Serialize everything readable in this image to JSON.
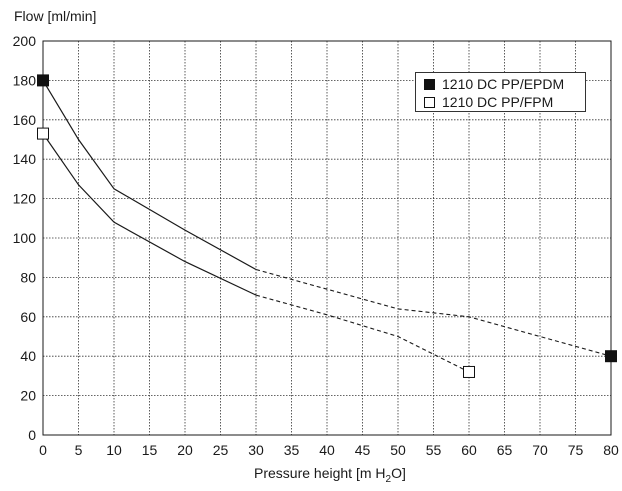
{
  "chart_data": {
    "type": "line",
    "xlabel_prefix": "Pressure height [m H",
    "xlabel_sub": "2",
    "xlabel_suffix": "O]",
    "ylabel": "Flow [ml/min]",
    "xlim": [
      0,
      80
    ],
    "ylim": [
      0,
      200
    ],
    "xticks": [
      0,
      5,
      10,
      15,
      20,
      25,
      30,
      35,
      40,
      45,
      50,
      55,
      60,
      65,
      70,
      75,
      80
    ],
    "yticks": [
      0,
      20,
      40,
      60,
      80,
      100,
      120,
      140,
      160,
      180,
      200
    ],
    "grid": true,
    "legend_position": "top-right",
    "series": [
      {
        "name": "1210 DC PP/EPDM",
        "marker": "filled-square",
        "solid": [
          [
            0,
            180
          ],
          [
            5,
            150
          ],
          [
            10,
            125
          ],
          [
            20,
            104
          ],
          [
            30,
            84
          ]
        ],
        "dashed": [
          [
            30,
            84
          ],
          [
            40,
            74
          ],
          [
            50,
            64
          ],
          [
            60,
            60
          ],
          [
            70,
            50
          ],
          [
            80,
            40
          ]
        ],
        "markers": [
          [
            0,
            180
          ],
          [
            80,
            40
          ]
        ]
      },
      {
        "name": "1210 DC PP/FPM",
        "marker": "open-square",
        "solid": [
          [
            0,
            153
          ],
          [
            5,
            127
          ],
          [
            10,
            108
          ],
          [
            20,
            88
          ],
          [
            30,
            71
          ]
        ],
        "dashed": [
          [
            30,
            71
          ],
          [
            40,
            61
          ],
          [
            50,
            50
          ],
          [
            60,
            32
          ]
        ],
        "markers": [
          [
            0,
            153
          ],
          [
            60,
            32
          ]
        ]
      }
    ]
  }
}
